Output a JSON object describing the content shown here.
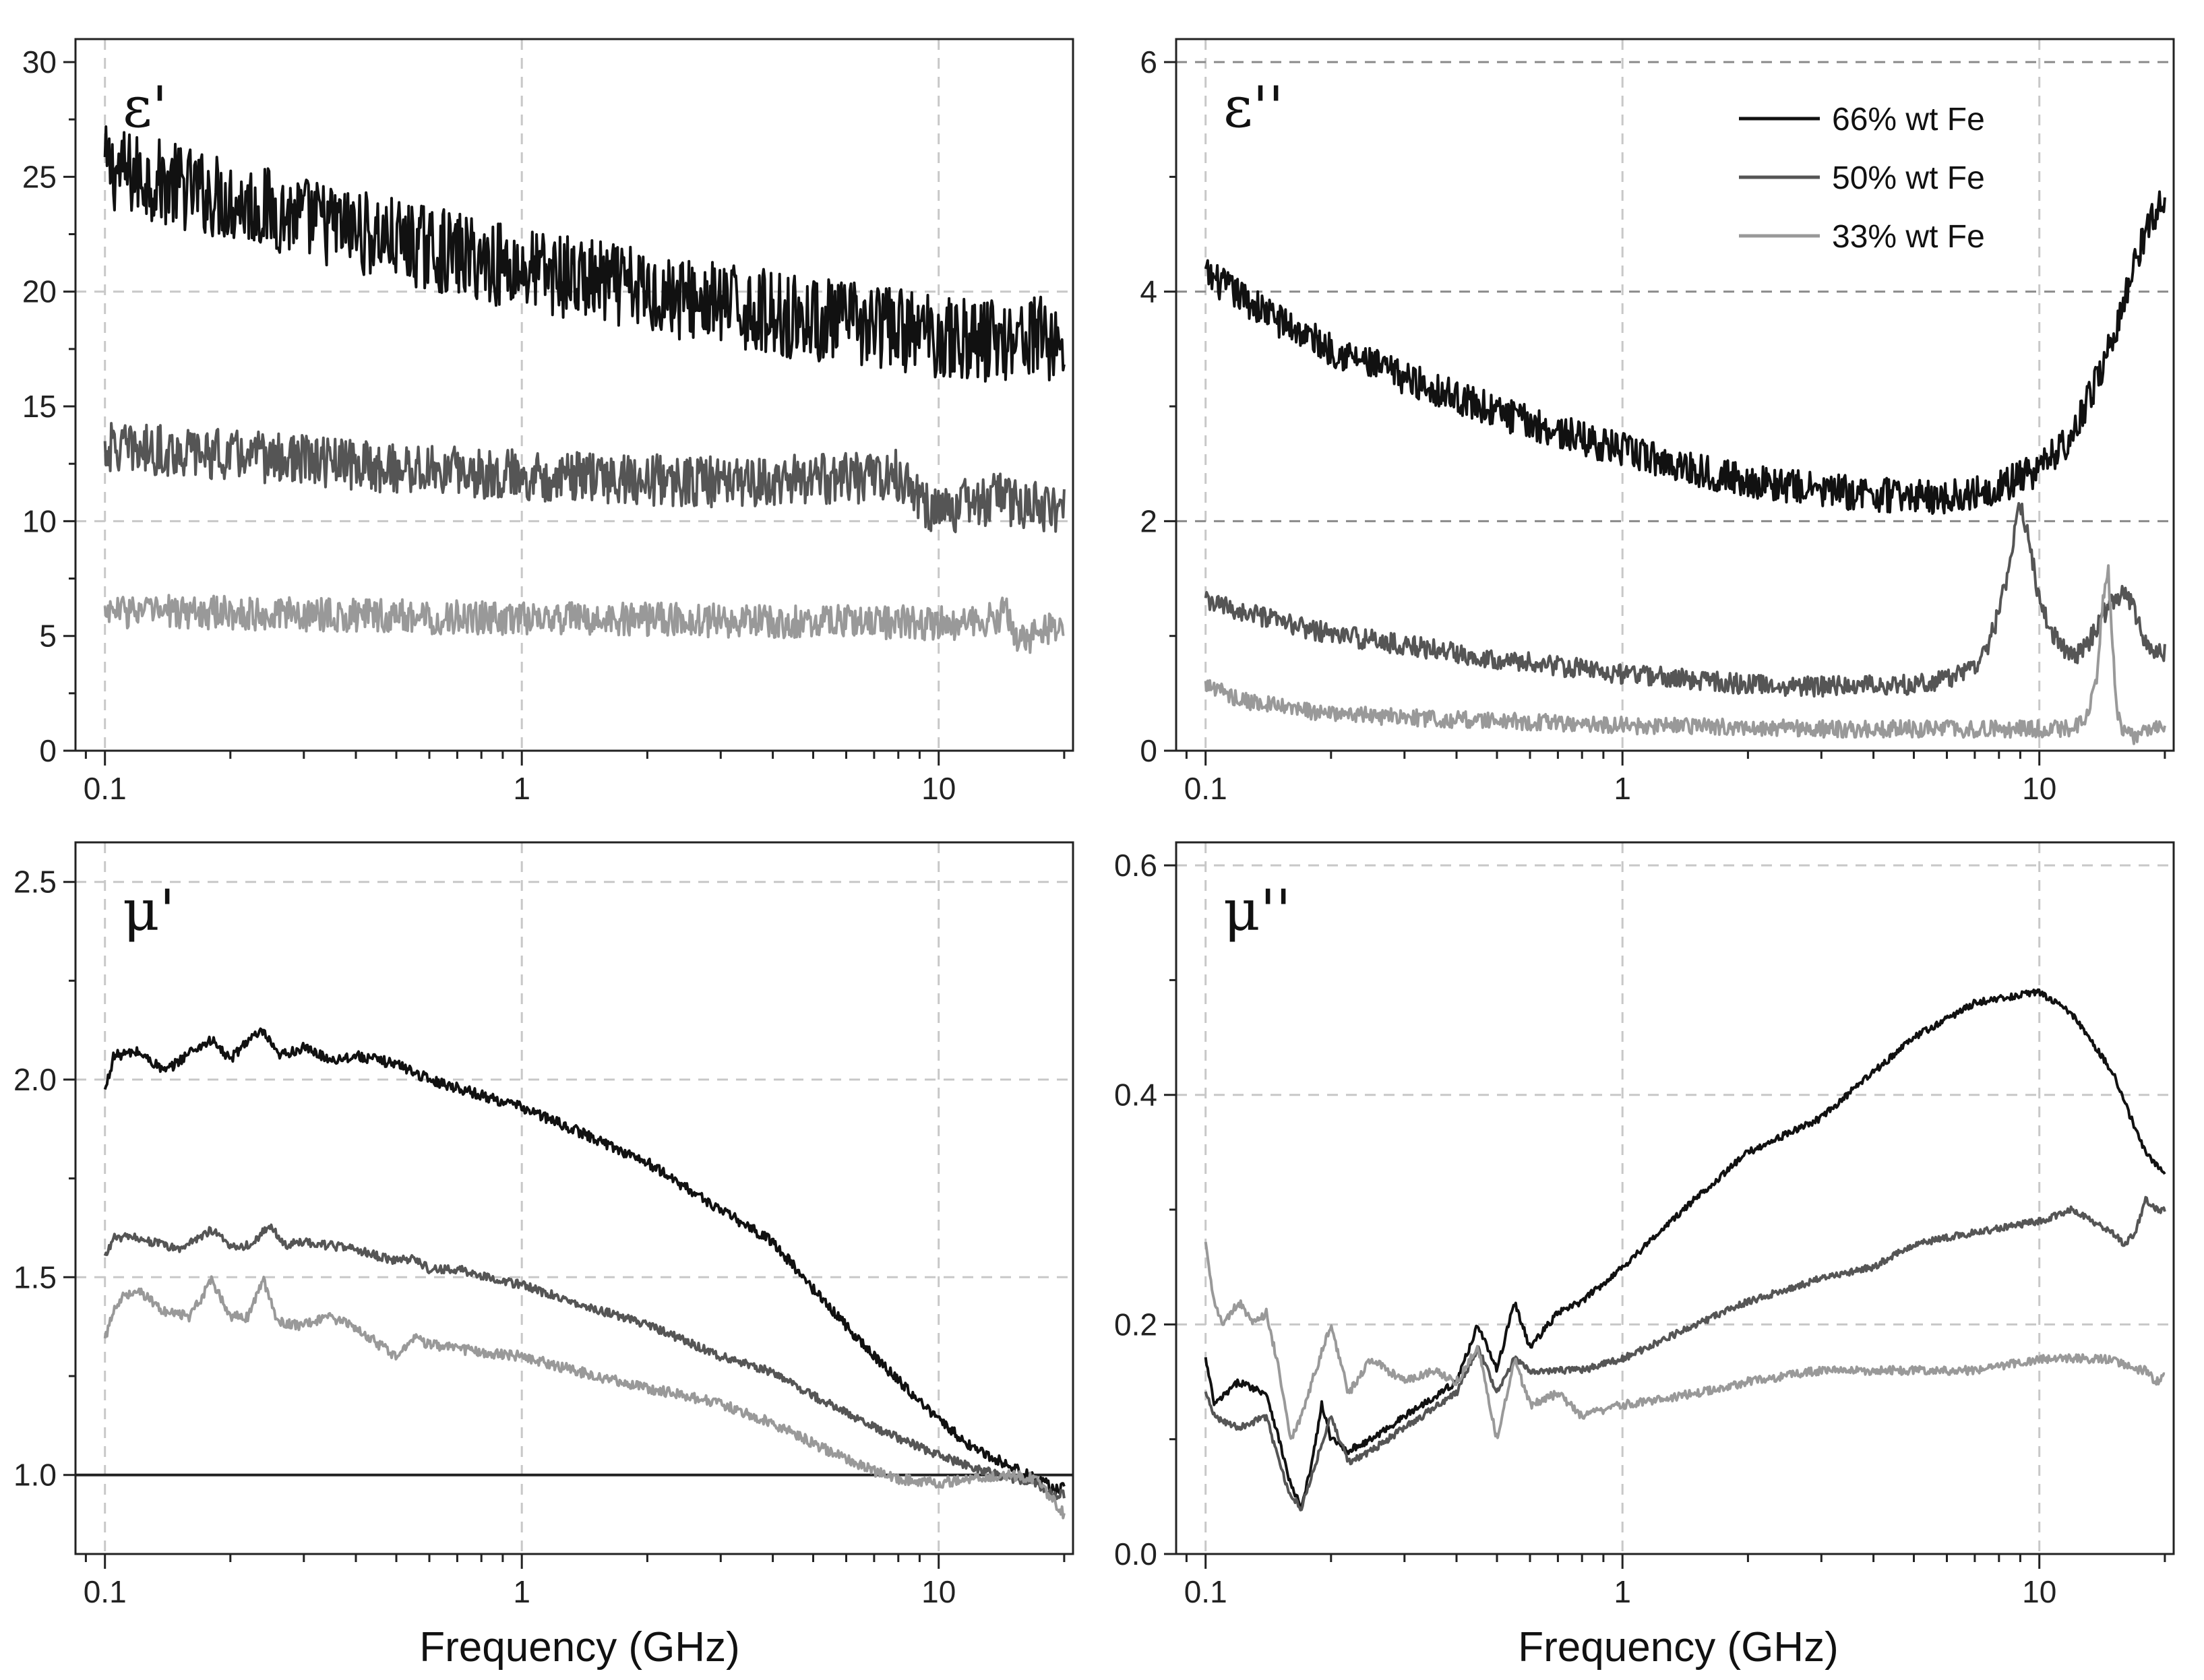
{
  "figure": {
    "xlabel": "Frequency (GHz)",
    "legend": [
      {
        "label": "66% wt Fe",
        "color": "#111111"
      },
      {
        "label": "50% wt Fe",
        "color": "#555555"
      },
      {
        "label": "33% wt Fe",
        "color": "#999999"
      }
    ]
  },
  "chart_data": [
    {
      "type": "line",
      "panel": "eps-real",
      "title": "ε'",
      "xlabel": "",
      "ylabel": "",
      "xscale": "log",
      "xlim": [
        0.085,
        21
      ],
      "ylim": [
        0,
        31
      ],
      "xticks": [
        0.1,
        1,
        10
      ],
      "xtick_labels": [
        "0.1",
        "1",
        "10"
      ],
      "yticks": [
        0,
        5,
        10,
        15,
        20,
        25,
        30
      ],
      "ytick_labels": [
        "0",
        "5",
        "10",
        "15",
        "20",
        "25",
        "30"
      ],
      "hgrid": [
        10,
        20
      ],
      "vgrid": [
        0.1,
        1,
        10
      ],
      "series": [
        {
          "name": "66% wt Fe",
          "color": "#111111",
          "noise": 0.05,
          "x": [
            0.1,
            0.15,
            0.2,
            0.3,
            0.5,
            0.7,
            1,
            1.5,
            2,
            3,
            5,
            7,
            10,
            12,
            15,
            17,
            17.5,
            18,
            18.5,
            19,
            20
          ],
          "y": [
            25.4,
            24.6,
            24,
            23.2,
            22.2,
            21.6,
            21,
            20.4,
            20,
            19.4,
            18.8,
            18.5,
            18.1,
            17.9,
            18,
            18.2,
            17.8,
            18.7,
            17.6,
            17.8,
            17.7
          ]
        },
        {
          "name": "50% wt Fe",
          "color": "#555555",
          "noise": 0.03,
          "x": [
            0.1,
            0.2,
            0.5,
            1,
            2,
            3,
            5,
            7,
            8,
            8.5,
            9,
            9.5,
            10,
            11,
            12,
            14,
            16,
            18,
            20
          ],
          "y": [
            13.2,
            12.9,
            12.3,
            12,
            11.8,
            11.7,
            11.8,
            11.9,
            12,
            11.6,
            10.8,
            10.6,
            10.4,
            10.6,
            10.8,
            11,
            10.8,
            10.5,
            10.7
          ]
        },
        {
          "name": "33% wt Fe",
          "color": "#999999",
          "noise": 0.02,
          "x": [
            0.1,
            0.2,
            0.5,
            1,
            2,
            5,
            8,
            10,
            12,
            13.5,
            14.5,
            15,
            15.5,
            17,
            18,
            20
          ],
          "y": [
            6.1,
            6,
            5.85,
            5.75,
            5.7,
            5.65,
            5.6,
            5.55,
            5.6,
            5.8,
            6,
            5.3,
            4.7,
            5.1,
            5.2,
            5.3
          ]
        }
      ]
    },
    {
      "type": "line",
      "panel": "eps-imag",
      "title": "ε''",
      "xlabel": "",
      "ylabel": "",
      "xscale": "log",
      "xlim": [
        0.085,
        21
      ],
      "ylim": [
        0,
        6.2
      ],
      "xticks": [
        0.1,
        1,
        10
      ],
      "xtick_labels": [
        "0.1",
        "1",
        "10"
      ],
      "yticks": [
        0,
        2,
        4,
        6
      ],
      "ytick_labels": [
        "0",
        "2",
        "4",
        "6"
      ],
      "hgrid": [
        2,
        4,
        6
      ],
      "vgrid": [
        0.1,
        1,
        10
      ],
      "legend_position": "top-right",
      "series": [
        {
          "name": "66% wt Fe",
          "color": "#111111",
          "noise": 0.02,
          "x": [
            0.1,
            0.15,
            0.2,
            0.3,
            0.5,
            0.7,
            1,
            1.5,
            2,
            3,
            4,
            5,
            6,
            7,
            8,
            10,
            12,
            14,
            16,
            17,
            18,
            19,
            20
          ],
          "y": [
            4.15,
            3.75,
            3.5,
            3.25,
            2.95,
            2.78,
            2.62,
            2.45,
            2.35,
            2.27,
            2.23,
            2.22,
            2.2,
            2.25,
            2.3,
            2.45,
            2.75,
            3.3,
            3.9,
            4.3,
            4.5,
            4.7,
            4.85
          ]
        },
        {
          "name": "50% wt Fe",
          "color": "#555555",
          "noise": 0.012,
          "x": [
            0.1,
            0.15,
            0.2,
            0.3,
            0.5,
            1,
            2,
            3,
            4,
            5,
            6,
            7,
            7.5,
            8,
            8.5,
            9,
            9.5,
            10,
            11,
            12,
            13,
            14,
            15,
            16,
            17,
            18,
            19,
            20
          ],
          "y": [
            1.3,
            1.12,
            1.02,
            0.92,
            0.8,
            0.67,
            0.58,
            0.56,
            0.57,
            0.58,
            0.62,
            0.75,
            0.9,
            1.2,
            1.65,
            2.15,
            1.8,
            1.3,
            0.95,
            0.8,
            0.9,
            1.15,
            1.3,
            1.4,
            1.2,
            0.95,
            0.88,
            0.85
          ]
        },
        {
          "name": "33% wt Fe",
          "color": "#999999",
          "noise": 0.01,
          "x": [
            0.1,
            0.12,
            0.15,
            0.2,
            0.3,
            0.5,
            1,
            2,
            3,
            5,
            8,
            10,
            12,
            13,
            13.7,
            14.2,
            14.6,
            15,
            15.4,
            16,
            17,
            18,
            19,
            20
          ],
          "y": [
            0.58,
            0.45,
            0.38,
            0.32,
            0.29,
            0.26,
            0.22,
            0.2,
            0.19,
            0.19,
            0.19,
            0.19,
            0.2,
            0.28,
            0.6,
            1.3,
            1.62,
            0.9,
            0.3,
            0.15,
            0.12,
            0.15,
            0.2,
            0.22
          ]
        }
      ]
    },
    {
      "type": "line",
      "panel": "mu-real",
      "title": "μ'",
      "xlabel": "Frequency (GHz)",
      "ylabel": "",
      "xscale": "log",
      "xlim": [
        0.085,
        21
      ],
      "ylim": [
        0.8,
        2.6
      ],
      "xticks": [
        0.1,
        1,
        10
      ],
      "xtick_labels": [
        "0.1",
        "1",
        "10"
      ],
      "yticks": [
        1.0,
        1.5,
        2.0,
        2.5
      ],
      "ytick_labels": [
        "1.0",
        "1.5",
        "2.0",
        "2.5"
      ],
      "hgrid": [
        1.5,
        2.0,
        2.5
      ],
      "vgrid": [
        0.1,
        1,
        10
      ],
      "reference_line": 1.0,
      "series": [
        {
          "name": "66% wt Fe",
          "color": "#111111",
          "noise": 0.006,
          "x": [
            0.1,
            0.105,
            0.12,
            0.14,
            0.16,
            0.18,
            0.2,
            0.22,
            0.24,
            0.26,
            0.3,
            0.35,
            0.4,
            0.5,
            0.55,
            0.6,
            0.7,
            0.8,
            1,
            1.5,
            2,
            3,
            4,
            5,
            7,
            10,
            12,
            15,
            17,
            18,
            19,
            20
          ],
          "y": [
            1.97,
            2.06,
            2.07,
            2.02,
            2.07,
            2.1,
            2.05,
            2.1,
            2.12,
            2.06,
            2.08,
            2.05,
            2.06,
            2.04,
            2.02,
            2.0,
            1.98,
            1.96,
            1.93,
            1.85,
            1.79,
            1.67,
            1.59,
            1.47,
            1.3,
            1.14,
            1.07,
            1.02,
            0.99,
            0.98,
            0.96,
            0.97
          ]
        },
        {
          "name": "50% wt Fe",
          "color": "#555555",
          "noise": 0.005,
          "x": [
            0.1,
            0.105,
            0.12,
            0.15,
            0.18,
            0.2,
            0.22,
            0.25,
            0.27,
            0.3,
            0.4,
            0.5,
            0.55,
            0.6,
            0.7,
            1,
            1.5,
            2,
            3,
            4,
            5,
            7,
            10,
            12,
            15,
            17,
            18,
            19,
            20
          ],
          "y": [
            1.55,
            1.6,
            1.6,
            1.57,
            1.62,
            1.58,
            1.58,
            1.63,
            1.58,
            1.59,
            1.57,
            1.54,
            1.55,
            1.52,
            1.52,
            1.48,
            1.42,
            1.38,
            1.3,
            1.26,
            1.2,
            1.12,
            1.05,
            1.02,
            0.99,
            0.98,
            0.96,
            0.95,
            0.95
          ]
        },
        {
          "name": "33% wt Fe",
          "color": "#999999",
          "noise": 0.006,
          "x": [
            0.1,
            0.105,
            0.11,
            0.12,
            0.14,
            0.16,
            0.18,
            0.2,
            0.22,
            0.24,
            0.26,
            0.28,
            0.3,
            0.35,
            0.4,
            0.5,
            0.55,
            0.6,
            0.7,
            0.8,
            1,
            1.5,
            2,
            3,
            4,
            5,
            6,
            7,
            8,
            10,
            12,
            15,
            17,
            18,
            19,
            20
          ],
          "y": [
            1.34,
            1.42,
            1.45,
            1.47,
            1.41,
            1.4,
            1.49,
            1.4,
            1.4,
            1.49,
            1.39,
            1.38,
            1.38,
            1.4,
            1.37,
            1.3,
            1.35,
            1.33,
            1.32,
            1.31,
            1.3,
            1.25,
            1.22,
            1.18,
            1.13,
            1.08,
            1.04,
            1.01,
            0.99,
            0.98,
            0.99,
            1.0,
            0.99,
            0.96,
            0.93,
            0.9
          ]
        }
      ]
    },
    {
      "type": "line",
      "panel": "mu-imag",
      "title": "μ''",
      "xlabel": "Frequency (GHz)",
      "ylabel": "",
      "xscale": "log",
      "xlim": [
        0.085,
        21
      ],
      "ylim": [
        0,
        0.62
      ],
      "xticks": [
        0.1,
        1,
        10
      ],
      "xtick_labels": [
        "0.1",
        "1",
        "10"
      ],
      "yticks": [
        0.0,
        0.2,
        0.4,
        0.6
      ],
      "ytick_labels": [
        "0.0",
        "0.2",
        "0.4",
        "0.6"
      ],
      "hgrid": [
        0.2,
        0.4,
        0.6
      ],
      "vgrid": [
        0.1,
        1,
        10
      ],
      "series": [
        {
          "name": "66% wt Fe",
          "color": "#111111",
          "noise": 0.004,
          "x": [
            0.1,
            0.105,
            0.12,
            0.14,
            0.15,
            0.16,
            0.17,
            0.18,
            0.19,
            0.2,
            0.22,
            0.25,
            0.3,
            0.4,
            0.45,
            0.5,
            0.55,
            0.6,
            0.7,
            0.8,
            1,
            1.5,
            2,
            3,
            4,
            5,
            7,
            10,
            12,
            15,
            17,
            18,
            19,
            20
          ],
          "y": [
            0.17,
            0.13,
            0.15,
            0.14,
            0.1,
            0.06,
            0.04,
            0.08,
            0.13,
            0.1,
            0.09,
            0.1,
            0.12,
            0.15,
            0.2,
            0.16,
            0.22,
            0.18,
            0.21,
            0.22,
            0.25,
            0.31,
            0.35,
            0.38,
            0.42,
            0.45,
            0.48,
            0.49,
            0.47,
            0.42,
            0.37,
            0.35,
            0.34,
            0.33
          ]
        },
        {
          "name": "50% wt Fe",
          "color": "#555555",
          "noise": 0.004,
          "x": [
            0.1,
            0.105,
            0.12,
            0.14,
            0.15,
            0.16,
            0.17,
            0.18,
            0.2,
            0.22,
            0.25,
            0.3,
            0.4,
            0.45,
            0.5,
            0.55,
            0.6,
            0.7,
            0.8,
            1,
            1.5,
            2,
            3,
            4,
            5,
            7,
            10,
            12,
            15,
            16,
            17,
            18,
            19,
            20
          ],
          "y": [
            0.14,
            0.12,
            0.11,
            0.12,
            0.08,
            0.05,
            0.04,
            0.07,
            0.12,
            0.08,
            0.09,
            0.11,
            0.14,
            0.18,
            0.14,
            0.17,
            0.16,
            0.16,
            0.16,
            0.17,
            0.2,
            0.22,
            0.24,
            0.25,
            0.27,
            0.28,
            0.29,
            0.3,
            0.28,
            0.27,
            0.28,
            0.31,
            0.3,
            0.3
          ]
        },
        {
          "name": "33% wt Fe",
          "color": "#999999",
          "noise": 0.005,
          "x": [
            0.1,
            0.105,
            0.11,
            0.12,
            0.13,
            0.14,
            0.15,
            0.16,
            0.17,
            0.18,
            0.2,
            0.22,
            0.25,
            0.3,
            0.35,
            0.4,
            0.45,
            0.5,
            0.55,
            0.6,
            0.7,
            0.8,
            1,
            1.5,
            2,
            3,
            5,
            7,
            10,
            12,
            15,
            17,
            18,
            19,
            20
          ],
          "y": [
            0.27,
            0.22,
            0.2,
            0.22,
            0.2,
            0.21,
            0.16,
            0.1,
            0.12,
            0.15,
            0.2,
            0.14,
            0.17,
            0.15,
            0.16,
            0.15,
            0.18,
            0.1,
            0.17,
            0.13,
            0.14,
            0.12,
            0.13,
            0.14,
            0.15,
            0.16,
            0.16,
            0.16,
            0.17,
            0.17,
            0.17,
            0.16,
            0.16,
            0.15,
            0.155
          ]
        }
      ]
    }
  ]
}
